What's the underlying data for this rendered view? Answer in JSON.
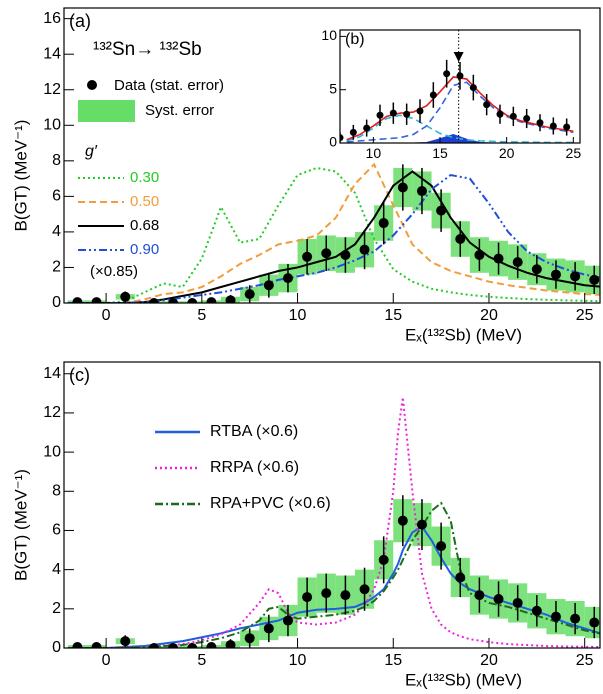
{
  "chart_data": [
    {
      "type": "line",
      "label": "(a)",
      "title": "¹³²Sn→ ¹³²Sb",
      "x_label": "Eₓ(¹³²Sb)  (MeV)",
      "y_label": "B(GT) (MeV⁻¹)",
      "xlim": [
        -2.2,
        25.8
      ],
      "ylim": [
        0,
        16.6
      ],
      "xticks": [
        0,
        5,
        10,
        15,
        20,
        25
      ],
      "yticks": [
        0,
        2,
        4,
        6,
        8,
        10,
        12,
        14,
        16
      ],
      "legend_title": "g′",
      "note": "(×0.85)",
      "x": [
        -2,
        -1,
        0,
        1,
        2,
        3,
        4,
        5,
        6,
        7,
        8,
        9,
        10,
        11,
        12,
        13,
        14,
        15,
        16,
        17,
        18,
        19,
        20,
        21,
        22,
        23,
        24,
        25,
        26
      ],
      "series": [
        {
          "name": "0.30",
          "color": "#22cc22",
          "dash": "dotted",
          "values": [
            0,
            0,
            0,
            0.1,
            0.6,
            1.1,
            0.9,
            2.5,
            5.4,
            3.4,
            3.6,
            5.5,
            7.2,
            7.6,
            7.4,
            6.2,
            3.6,
            1.9,
            1.2,
            0.8,
            0.6,
            0.45,
            0.35,
            0.28,
            0.22,
            0.18,
            0.15,
            0.12,
            0.1
          ]
        },
        {
          "name": "0.50",
          "color": "#f39c3c",
          "dash": "dashed",
          "values": [
            0,
            0,
            0,
            0,
            0.2,
            0.5,
            0.6,
            0.9,
            1.5,
            2.2,
            2.7,
            3.3,
            3.5,
            3.8,
            4.8,
            6.7,
            7.8,
            5.5,
            3.3,
            2.3,
            1.8,
            1.5,
            1.2,
            1.0,
            0.85,
            0.7,
            0.6,
            0.5,
            0.45
          ]
        },
        {
          "name": "0.68",
          "color": "#000000",
          "dash": "solid",
          "values": [
            0,
            0,
            0,
            0,
            0.05,
            0.2,
            0.4,
            0.6,
            0.9,
            1.2,
            1.5,
            1.8,
            2.0,
            2.3,
            2.6,
            3.3,
            4.8,
            6.6,
            7.4,
            6.6,
            4.8,
            3.4,
            2.6,
            2.1,
            1.7,
            1.4,
            1.2,
            1.0,
            0.9
          ]
        },
        {
          "name": "0.90",
          "color": "#1f4fd8",
          "dash": "dashdotdot",
          "values": [
            0,
            0,
            0,
            0,
            0.05,
            0.15,
            0.3,
            0.45,
            0.6,
            0.8,
            1.0,
            1.3,
            1.5,
            1.7,
            2.0,
            2.4,
            2.9,
            3.8,
            5.0,
            6.4,
            7.2,
            7.0,
            5.6,
            4.0,
            2.9,
            2.3,
            1.9,
            1.6,
            1.4
          ]
        }
      ],
      "data": {
        "name": "Data (stat. error)",
        "syst_name": "Syst. error",
        "syst_color": "#66dd66",
        "x": [
          -1.5,
          -0.5,
          1,
          2.5,
          3.5,
          4.5,
          5.5,
          6.5,
          7.5,
          8.5,
          9.5,
          10.5,
          11.5,
          12.5,
          13.5,
          14.5,
          15.5,
          16.5,
          17.5,
          18.5,
          19.5,
          20.5,
          21.5,
          22.5,
          23.5,
          24.5,
          25.5
        ],
        "values": [
          0.05,
          0.05,
          0.35,
          0,
          0,
          0,
          0.05,
          0.15,
          0.5,
          1.0,
          1.4,
          2.6,
          2.8,
          2.7,
          3.0,
          4.5,
          6.5,
          6.3,
          5.2,
          3.6,
          2.7,
          2.5,
          2.3,
          1.9,
          1.6,
          1.5,
          1.3
        ],
        "errors": [
          0.2,
          0.2,
          0.3,
          0.2,
          0.2,
          0.2,
          0.2,
          0.3,
          0.5,
          0.7,
          0.8,
          1.0,
          1.0,
          1.0,
          1.1,
          1.2,
          1.3,
          1.3,
          1.2,
          1.0,
          0.9,
          0.9,
          0.9,
          0.8,
          0.8,
          0.8,
          0.8
        ],
        "syst_errors": [
          0.1,
          0.1,
          0.15,
          0.1,
          0.1,
          0.1,
          0.1,
          0.2,
          0.4,
          0.6,
          0.8,
          1.0,
          1.0,
          1.0,
          1.0,
          1.0,
          1.1,
          1.1,
          1.0,
          1.0,
          1.0,
          1.0,
          1.0,
          0.9,
          0.9,
          0.9,
          0.8
        ]
      }
    },
    {
      "type": "line",
      "label": "(b)",
      "xlim": [
        7.5,
        25.5
      ],
      "ylim": [
        0,
        10.6
      ],
      "xticks": [
        10,
        15,
        20,
        25
      ],
      "yticks": [
        0,
        5,
        10
      ],
      "marker_x": 16.4,
      "x": [
        8,
        9,
        10,
        11,
        12,
        13,
        14,
        15,
        16,
        17,
        18,
        19,
        20,
        21,
        22,
        23,
        24,
        25
      ],
      "series": [
        {
          "color": "#1f3fd0",
          "dash": "solid",
          "fill": true,
          "values": [
            0,
            0,
            0,
            0,
            0,
            0,
            0.05,
            0.4,
            0.8,
            0.35,
            0.05,
            0,
            0,
            0,
            0,
            0,
            0,
            0
          ]
        },
        {
          "color": "#33b5d5",
          "dash": "dashed",
          "values": [
            0.2,
            0.6,
            1.4,
            2.3,
            2.6,
            2.3,
            1.6,
            0.9,
            0.5,
            0.3,
            0.2,
            0.15,
            0.1,
            0.1,
            0.08,
            0.05,
            0.05,
            0.05
          ]
        },
        {
          "color": "#3366dd",
          "dash": "dashed",
          "values": [
            0.1,
            0.2,
            0.3,
            0.4,
            0.5,
            0.8,
            1.6,
            3.3,
            5.4,
            5.7,
            4.4,
            3.3,
            2.5,
            2.0,
            1.7,
            1.4,
            1.2,
            1.0
          ]
        },
        {
          "color": "#e02020",
          "dash": "solid",
          "values": [
            0.3,
            0.8,
            1.6,
            2.5,
            2.8,
            2.9,
            3.5,
            4.8,
            6.2,
            6.0,
            4.7,
            3.5,
            2.6,
            2.1,
            1.8,
            1.5,
            1.3,
            1.1
          ]
        }
      ],
      "data": {
        "x": [
          7.5,
          8.5,
          9.5,
          10.5,
          11.5,
          12.5,
          13.5,
          14.5,
          15.5,
          16.5,
          17.5,
          18.5,
          19.5,
          20.5,
          21.5,
          22.5,
          23.5,
          24.5
        ],
        "values": [
          0.5,
          1.0,
          1.4,
          2.6,
          2.8,
          2.7,
          3.0,
          4.5,
          6.5,
          6.3,
          5.2,
          3.6,
          2.7,
          2.5,
          2.3,
          1.9,
          1.6,
          1.5
        ],
        "errors": [
          0.5,
          0.7,
          0.8,
          1.0,
          1.0,
          1.0,
          1.1,
          1.2,
          1.3,
          1.3,
          1.2,
          1.0,
          0.9,
          0.9,
          0.9,
          0.8,
          0.8,
          0.8
        ]
      }
    },
    {
      "type": "line",
      "label": "(c)",
      "x_label": "Eₓ(¹³²Sb)  (MeV)",
      "y_label": "B(GT) (MeV⁻¹)",
      "xlim": [
        -2.2,
        25.8
      ],
      "ylim": [
        0,
        14.6
      ],
      "xticks": [
        0,
        5,
        10,
        15,
        20,
        25
      ],
      "yticks": [
        0,
        2,
        4,
        6,
        8,
        10,
        12,
        14
      ],
      "x": [
        -2,
        0,
        2,
        4,
        5,
        6,
        7,
        8,
        8.5,
        9,
        9.5,
        10,
        11,
        12,
        13,
        13.5,
        14,
        14.5,
        15,
        15.25,
        15.5,
        16,
        16.5,
        17,
        17.5,
        18,
        18.5,
        19,
        20,
        21,
        22,
        23,
        24,
        25,
        26
      ],
      "series": [
        {
          "name": "RTBA (×0.6)",
          "color": "#1f5fe0",
          "dash": "solid",
          "values": [
            0,
            0,
            0.1,
            0.35,
            0.55,
            0.75,
            1.0,
            1.2,
            1.3,
            1.4,
            1.6,
            1.8,
            1.95,
            2.0,
            2.1,
            2.3,
            2.6,
            3.0,
            3.8,
            4.3,
            5.0,
            5.9,
            6.2,
            5.5,
            4.6,
            3.8,
            3.3,
            3.0,
            2.6,
            2.3,
            2.0,
            1.7,
            1.3,
            1.0,
            0.7
          ]
        },
        {
          "name": "RRPA (×0.6)",
          "color": "#ee22dd",
          "dash": "dotted",
          "values": [
            0,
            0,
            0.05,
            0.2,
            0.4,
            0.7,
            1.2,
            2.3,
            3.0,
            2.8,
            1.8,
            1.3,
            1.2,
            1.3,
            1.7,
            2.2,
            3.0,
            4.5,
            8.0,
            11.0,
            12.8,
            8.0,
            3.8,
            2.0,
            1.2,
            0.8,
            0.6,
            0.45,
            0.3,
            0.2,
            0.15,
            0.1,
            0.08,
            0.06,
            0.05
          ]
        },
        {
          "name": "RPA+PVC (×0.6)",
          "color": "#1e6b1e",
          "dash": "dashdot",
          "values": [
            0,
            0,
            0.05,
            0.15,
            0.3,
            0.5,
            0.8,
            1.4,
            2.0,
            2.1,
            1.7,
            1.5,
            1.6,
            1.7,
            1.9,
            2.1,
            2.4,
            2.9,
            3.6,
            4.0,
            4.5,
            5.5,
            6.2,
            7.0,
            7.4,
            6.5,
            4.0,
            2.8,
            2.3,
            2.1,
            1.8,
            1.5,
            1.2,
            0.9,
            0.7
          ]
        }
      ],
      "data": {
        "syst_color": "#66dd66",
        "x": [
          -1.5,
          -0.5,
          1,
          2.5,
          3.5,
          4.5,
          5.5,
          6.5,
          7.5,
          8.5,
          9.5,
          10.5,
          11.5,
          12.5,
          13.5,
          14.5,
          15.5,
          16.5,
          17.5,
          18.5,
          19.5,
          20.5,
          21.5,
          22.5,
          23.5,
          24.5,
          25.5
        ],
        "values": [
          0.05,
          0.05,
          0.35,
          0,
          0,
          0,
          0.05,
          0.15,
          0.5,
          1.0,
          1.4,
          2.6,
          2.8,
          2.7,
          3.0,
          4.5,
          6.5,
          6.3,
          5.2,
          3.6,
          2.7,
          2.5,
          2.3,
          1.9,
          1.6,
          1.5,
          1.3
        ],
        "errors": [
          0.2,
          0.2,
          0.3,
          0.2,
          0.2,
          0.2,
          0.2,
          0.3,
          0.5,
          0.7,
          0.8,
          1.0,
          1.0,
          1.0,
          1.1,
          1.2,
          1.3,
          1.3,
          1.2,
          1.0,
          0.9,
          0.9,
          0.9,
          0.8,
          0.8,
          0.8,
          0.8
        ],
        "syst_errors": [
          0.1,
          0.1,
          0.15,
          0.1,
          0.1,
          0.1,
          0.1,
          0.2,
          0.4,
          0.6,
          0.8,
          1.0,
          1.0,
          1.0,
          1.0,
          1.0,
          1.1,
          1.1,
          1.0,
          1.0,
          1.0,
          1.0,
          1.0,
          0.9,
          0.9,
          0.9,
          0.8
        ]
      }
    }
  ]
}
